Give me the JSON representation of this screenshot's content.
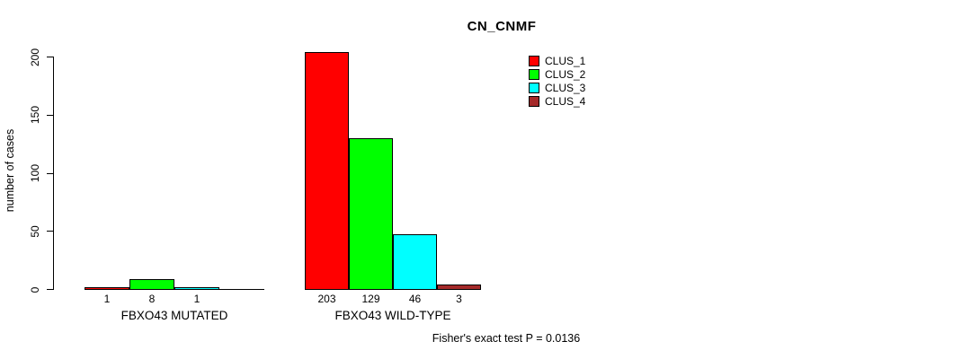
{
  "title": "CN_CNMF",
  "y_axis": {
    "label": "number of cases",
    "ticks": [
      0,
      50,
      100,
      150,
      200
    ]
  },
  "legend": {
    "items": [
      {
        "label": "CLUS_1",
        "color": "#ff0000"
      },
      {
        "label": "CLUS_2",
        "color": "#00ff00"
      },
      {
        "label": "CLUS_3",
        "color": "#00ffff"
      },
      {
        "label": "CLUS_4",
        "color": "#a52a2a"
      }
    ]
  },
  "footer": "Fisher's exact test P = 0.0136",
  "chart_data": {
    "type": "bar",
    "title": "CN_CNMF",
    "xlabel": "",
    "ylabel": "number of cases",
    "ylim": [
      0,
      200
    ],
    "yticks": [
      0,
      50,
      100,
      150,
      200
    ],
    "grid": false,
    "legend_position": "top-right",
    "series": [
      "CLUS_1",
      "CLUS_2",
      "CLUS_3",
      "CLUS_4"
    ],
    "colors": [
      "#ff0000",
      "#00ff00",
      "#00ffff",
      "#a52a2a"
    ],
    "groups": [
      {
        "label": "FBXO43 MUTATED",
        "values": [
          1,
          8,
          1,
          0
        ],
        "value_labels": [
          "1",
          "8",
          "1",
          ""
        ]
      },
      {
        "label": "FBXO43 WILD-TYPE",
        "values": [
          203,
          129,
          46,
          3
        ],
        "value_labels": [
          "203",
          "129",
          "46",
          "3"
        ]
      }
    ],
    "annotation": "Fisher's exact test P = 0.0136"
  }
}
